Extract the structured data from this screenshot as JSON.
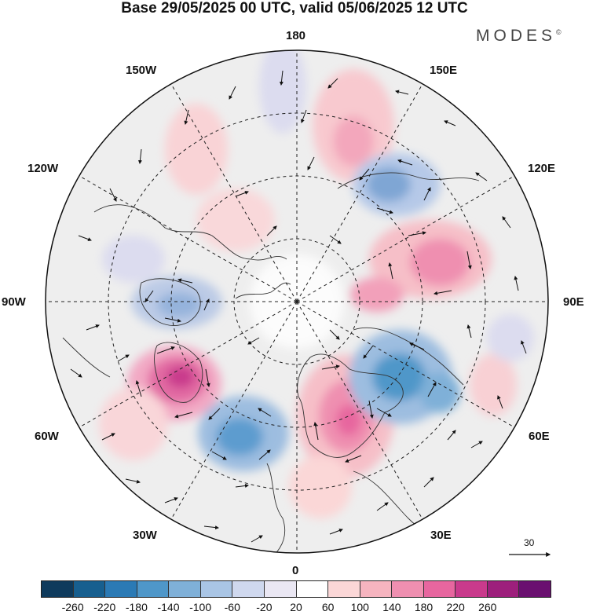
{
  "title": "Base 29/05/2025 00 UTC, valid 05/06/2025 12 UTC",
  "brand": "MODES",
  "brand_mark": "©",
  "longitude_labels": {
    "top": "180",
    "top_left": "150W",
    "top_right": "150E",
    "upper_left": "120W",
    "upper_right": "120E",
    "left": "90W",
    "right": "90E",
    "lower_left": "60W",
    "lower_right": "60E",
    "bottom_left": "30W",
    "bottom_right": "30E",
    "bottom": "0"
  },
  "reference_vector": "30",
  "colorbar": {
    "ticks": [
      "-260",
      "-220",
      "-180",
      "-140",
      "-100",
      "-60",
      "-20",
      "20",
      "60",
      "100",
      "140",
      "180",
      "220",
      "260"
    ],
    "colors": [
      "#0e3a5c",
      "#175f8f",
      "#2b7ab5",
      "#4f97c9",
      "#7fb0d8",
      "#a9c5e5",
      "#cfd8ee",
      "#eae7f3",
      "#ffffff",
      "#fbd7d7",
      "#f6b4bf",
      "#ef8fb0",
      "#e7669f",
      "#c93a8c",
      "#9d1f7c",
      "#6a1070"
    ]
  },
  "anomaly_centres": [
    {
      "id": "atlantic-high",
      "sign": "positive",
      "intensity": "strong"
    },
    {
      "id": "atlantic-low",
      "sign": "negative",
      "intensity": "strong"
    },
    {
      "id": "europe-high",
      "sign": "positive",
      "intensity": "strong"
    },
    {
      "id": "russia-low",
      "sign": "negative",
      "intensity": "strong"
    },
    {
      "id": "siberia-high",
      "sign": "positive",
      "intensity": "strong"
    },
    {
      "id": "east-siberia-low",
      "sign": "negative",
      "intensity": "moderate"
    },
    {
      "id": "canada-low",
      "sign": "negative",
      "intensity": "moderate"
    },
    {
      "id": "pacific-high",
      "sign": "positive",
      "intensity": "moderate"
    }
  ]
}
